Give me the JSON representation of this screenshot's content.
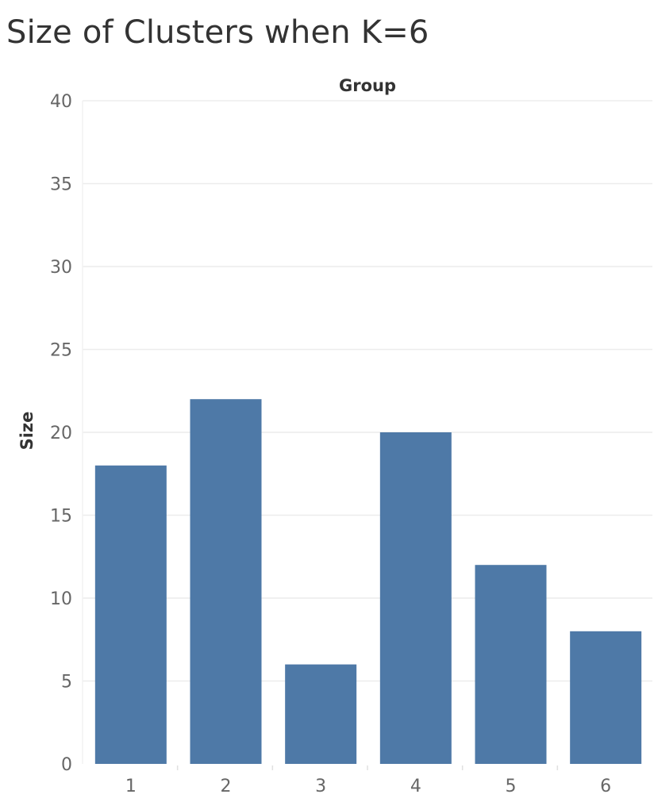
{
  "chart_data": {
    "type": "bar",
    "title": "Size of Clusters when K=6",
    "xlabel": "Group",
    "ylabel": "Size",
    "categories": [
      "1",
      "2",
      "3",
      "4",
      "5",
      "6"
    ],
    "values": [
      18,
      22,
      6,
      20,
      12,
      8
    ],
    "ylim": [
      0,
      40
    ],
    "yticks": [
      0,
      5,
      10,
      15,
      20,
      25,
      30,
      35,
      40
    ],
    "grid": true,
    "bar_color": "#4e79a7",
    "gridline_color": "#ececec"
  }
}
